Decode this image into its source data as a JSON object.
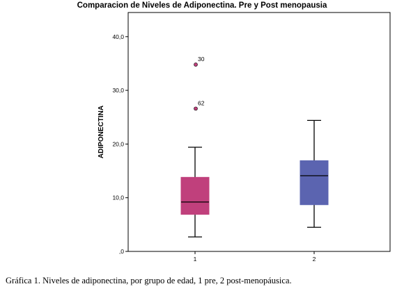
{
  "caption": "Gráfica 1. Niveles de adiponectina, por grupo de edad, 1 pre, 2 post-menopáusica.",
  "chart_data": {
    "type": "boxplot",
    "title": "Comparacion de Niveles de Adiponectina. Pre y Post menopausia",
    "ylabel": "ADIPONECTINA",
    "xlabel": "",
    "ylim": [
      0,
      44.5
    ],
    "yticks": [
      {
        "value": 0,
        "label": ",0"
      },
      {
        "value": 10,
        "label": "10,0"
      },
      {
        "value": 20,
        "label": "20,0"
      },
      {
        "value": 30,
        "label": "30,0"
      },
      {
        "value": 40,
        "label": "40,0"
      }
    ],
    "categories": [
      "1",
      "2"
    ],
    "boxes": [
      {
        "category": "1",
        "min": 2.7,
        "q1": 6.9,
        "median": 9.2,
        "q3": 13.8,
        "max": 19.4,
        "color": "#c0407c",
        "outliers": [
          {
            "value": 34.8,
            "label": "30"
          },
          {
            "value": 26.6,
            "label": "62"
          }
        ]
      },
      {
        "category": "2",
        "min": 4.5,
        "q1": 8.7,
        "median": 14.1,
        "q3": 16.9,
        "max": 24.4,
        "color": "#5b64b0",
        "outliers": []
      }
    ],
    "grid": false,
    "legend": "none"
  }
}
